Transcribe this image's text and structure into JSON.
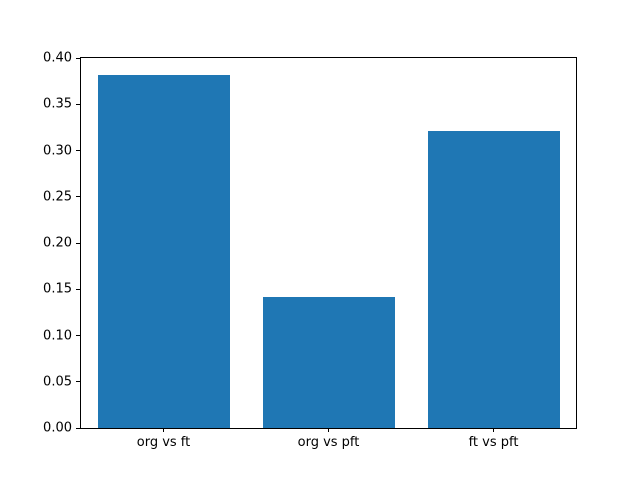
{
  "chart_data": {
    "type": "bar",
    "title": "",
    "xlabel": "",
    "ylabel": "",
    "categories": [
      "org vs ft",
      "org vs pft",
      "ft vs pft"
    ],
    "values": [
      0.382,
      0.142,
      0.321
    ],
    "bar_color": "#1f77b4",
    "bar_width_fraction": 0.8,
    "ylim": [
      0.0,
      0.4
    ],
    "yticks": [
      0.0,
      0.05,
      0.1,
      0.15,
      0.2,
      0.25,
      0.3,
      0.35,
      0.4
    ],
    "ytick_labels": [
      "0.00",
      "0.05",
      "0.10",
      "0.15",
      "0.20",
      "0.25",
      "0.30",
      "0.35",
      "0.40"
    ],
    "grid": false,
    "legend": null,
    "axis_color": "#000000",
    "background_color": "#ffffff"
  }
}
